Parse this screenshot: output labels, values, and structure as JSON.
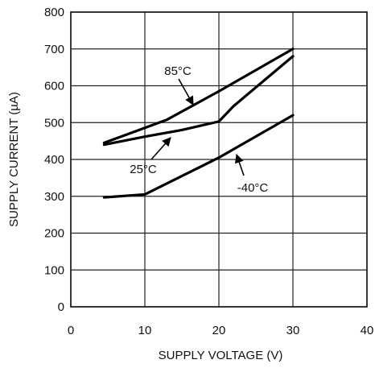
{
  "chart_data": {
    "type": "line",
    "xlabel": "SUPPLY VOLTAGE (V)",
    "ylabel": "SUPPLY CURRENT (µA)",
    "xlim": [
      0,
      40
    ],
    "ylim": [
      0,
      800
    ],
    "xticks": [
      0,
      10,
      20,
      30,
      40
    ],
    "yticks": [
      0,
      100,
      200,
      300,
      400,
      500,
      600,
      700,
      800
    ],
    "grid": true,
    "series": [
      {
        "name": "85°C",
        "x": [
          4.5,
          13,
          20,
          30
        ],
        "y": [
          445,
          508,
          585,
          700
        ]
      },
      {
        "name": "25°C",
        "x": [
          4.5,
          10,
          15,
          20,
          22,
          30
        ],
        "y": [
          440,
          462,
          480,
          503,
          545,
          680
        ]
      },
      {
        "name": "-40°C",
        "x": [
          4.5,
          10,
          20,
          30
        ],
        "y": [
          297,
          305,
          405,
          520
        ]
      }
    ],
    "annotations": [
      {
        "text": "85°C",
        "series": 0
      },
      {
        "text": "25°C",
        "series": 1
      },
      {
        "text": "-40°C",
        "series": 2
      }
    ]
  }
}
